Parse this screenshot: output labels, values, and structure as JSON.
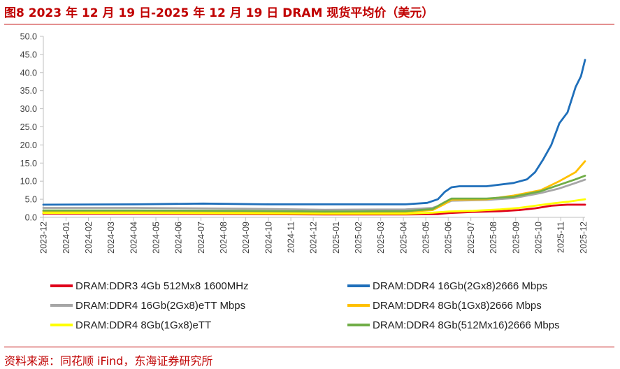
{
  "header": {
    "title": "图8  2023 年 12 月 19 日-2025 年 12 月 19 日 DRAM 现货平均价（美元）"
  },
  "footer": {
    "source": "资料来源：同花顺 iFind，东海证券研究所"
  },
  "colors": {
    "accent": "#c00000",
    "axis": "#bfbfbf",
    "tick": "#404040"
  },
  "chart_data": {
    "type": "line",
    "title": "2023 年 12 月 19 日-2025 年 12 月 19 日 DRAM 现货平均价（美元）",
    "xlabel": "",
    "ylabel": "",
    "ylim": [
      0,
      50
    ],
    "yticks": [
      "0.0",
      "5.0",
      "10.0",
      "15.0",
      "20.0",
      "25.0",
      "30.0",
      "35.0",
      "40.0",
      "45.0",
      "50.0"
    ],
    "x_range": [
      2023.958,
      2025.965
    ],
    "xticks": [
      {
        "label": "2023-12",
        "x": 2023.958
      },
      {
        "label": "2024-01",
        "x": 2024.042
      },
      {
        "label": "2024-02",
        "x": 2024.125
      },
      {
        "label": "2024-03",
        "x": 2024.208
      },
      {
        "label": "2024-04",
        "x": 2024.292
      },
      {
        "label": "2024-05",
        "x": 2024.375
      },
      {
        "label": "2024-06",
        "x": 2024.458
      },
      {
        "label": "2024-07",
        "x": 2024.542
      },
      {
        "label": "2024-08",
        "x": 2024.625
      },
      {
        "label": "2024-09",
        "x": 2024.708
      },
      {
        "label": "2024-10",
        "x": 2024.792
      },
      {
        "label": "2024-11",
        "x": 2024.875
      },
      {
        "label": "2024-12",
        "x": 2024.958
      },
      {
        "label": "2025-01",
        "x": 2025.042
      },
      {
        "label": "2025-02",
        "x": 2025.125
      },
      {
        "label": "2025-03",
        "x": 2025.208
      },
      {
        "label": "2025-04",
        "x": 2025.292
      },
      {
        "label": "2025-05",
        "x": 2025.375
      },
      {
        "label": "2025-06",
        "x": 2025.458
      },
      {
        "label": "2025-07",
        "x": 2025.542
      },
      {
        "label": "2025-08",
        "x": 2025.625
      },
      {
        "label": "2025-09",
        "x": 2025.708
      },
      {
        "label": "2025-10",
        "x": 2025.792
      },
      {
        "label": "2025-11",
        "x": 2025.875
      },
      {
        "label": "2025-12",
        "x": 2025.958
      }
    ],
    "series": [
      {
        "name": "DRAM:DDR3 4Gb 512Mx8 1600MHz",
        "color": "#e0001b",
        "x": [
          2023.958,
          2024.3,
          2024.7,
          2025.0,
          2025.3,
          2025.42,
          2025.46,
          2025.55,
          2025.65,
          2025.72,
          2025.78,
          2025.84,
          2025.9,
          2025.965
        ],
        "values": [
          1.0,
          1.0,
          0.9,
          0.8,
          0.8,
          0.9,
          1.2,
          1.5,
          1.7,
          2.0,
          2.5,
          3.2,
          3.5,
          3.5
        ]
      },
      {
        "name": "DRAM:DDR4 16Gb(2Gx8)2666 Mbps",
        "color": "#1f6fba",
        "x": [
          2023.958,
          2024.3,
          2024.55,
          2024.8,
          2025.0,
          2025.3,
          2025.38,
          2025.42,
          2025.445,
          2025.47,
          2025.5,
          2025.6,
          2025.7,
          2025.75,
          2025.78,
          2025.81,
          2025.84,
          2025.87,
          2025.9,
          2025.93,
          2025.95,
          2025.965
        ],
        "values": [
          3.5,
          3.6,
          3.8,
          3.6,
          3.6,
          3.6,
          4.0,
          5.0,
          7.0,
          8.3,
          8.6,
          8.6,
          9.5,
          10.5,
          12.5,
          16.0,
          20.0,
          26.0,
          29.0,
          36.0,
          39.0,
          43.5
        ]
      },
      {
        "name": "DRAM:DDR4 16Gb(2Gx8)eTT Mbps",
        "color": "#a6a6a6",
        "x": [
          2023.958,
          2024.3,
          2024.7,
          2025.0,
          2025.3,
          2025.4,
          2025.44,
          2025.47,
          2025.6,
          2025.7,
          2025.8,
          2025.87,
          2025.93,
          2025.965
        ],
        "values": [
          2.6,
          2.6,
          2.4,
          2.1,
          2.2,
          2.6,
          3.6,
          4.6,
          4.8,
          5.3,
          6.7,
          8.0,
          9.5,
          10.4
        ]
      },
      {
        "name": "DRAM:DDR4 8Gb(1Gx8)2666 Mbps",
        "color": "#ffc000",
        "x": [
          2023.958,
          2024.3,
          2024.7,
          2025.0,
          2025.3,
          2025.4,
          2025.44,
          2025.47,
          2025.6,
          2025.7,
          2025.8,
          2025.87,
          2025.93,
          2025.965
        ],
        "values": [
          1.6,
          1.6,
          1.5,
          1.4,
          1.5,
          2.0,
          3.5,
          4.9,
          5.0,
          6.0,
          7.5,
          10.0,
          12.5,
          15.5
        ]
      },
      {
        "name": "DRAM:DDR4 8Gb(1Gx8)eTT",
        "color": "#ffff00",
        "x": [
          2023.958,
          2024.3,
          2024.7,
          2025.0,
          2025.3,
          2025.4,
          2025.46,
          2025.55,
          2025.65,
          2025.72,
          2025.78,
          2025.84,
          2025.9,
          2025.965
        ],
        "values": [
          1.2,
          1.2,
          1.1,
          1.0,
          1.0,
          1.3,
          1.6,
          1.8,
          2.2,
          2.6,
          3.2,
          3.8,
          4.3,
          5.0
        ]
      },
      {
        "name": "DRAM:DDR4 8Gb(512Mx16)2666 Mbps",
        "color": "#70ad47",
        "x": [
          2023.958,
          2024.3,
          2024.7,
          2025.0,
          2025.3,
          2025.4,
          2025.44,
          2025.47,
          2025.6,
          2025.7,
          2025.8,
          2025.87,
          2025.93,
          2025.965
        ],
        "values": [
          1.9,
          1.9,
          1.8,
          1.6,
          1.7,
          2.3,
          4.0,
          5.2,
          5.2,
          5.7,
          7.2,
          9.0,
          10.5,
          11.5
        ]
      }
    ]
  }
}
